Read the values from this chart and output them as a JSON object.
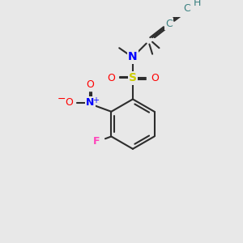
{
  "background_color": "#e8e8e8",
  "bond_color": "#2d2d2d",
  "bond_width": 1.5,
  "colors": {
    "N": "#0000ff",
    "O": "#ff0000",
    "S": "#cccc00",
    "F": "#ff44bb",
    "C_alkyne": "#3a8080",
    "H": "#3a8080",
    "C": "#2d2d2d"
  },
  "font_size": 9
}
